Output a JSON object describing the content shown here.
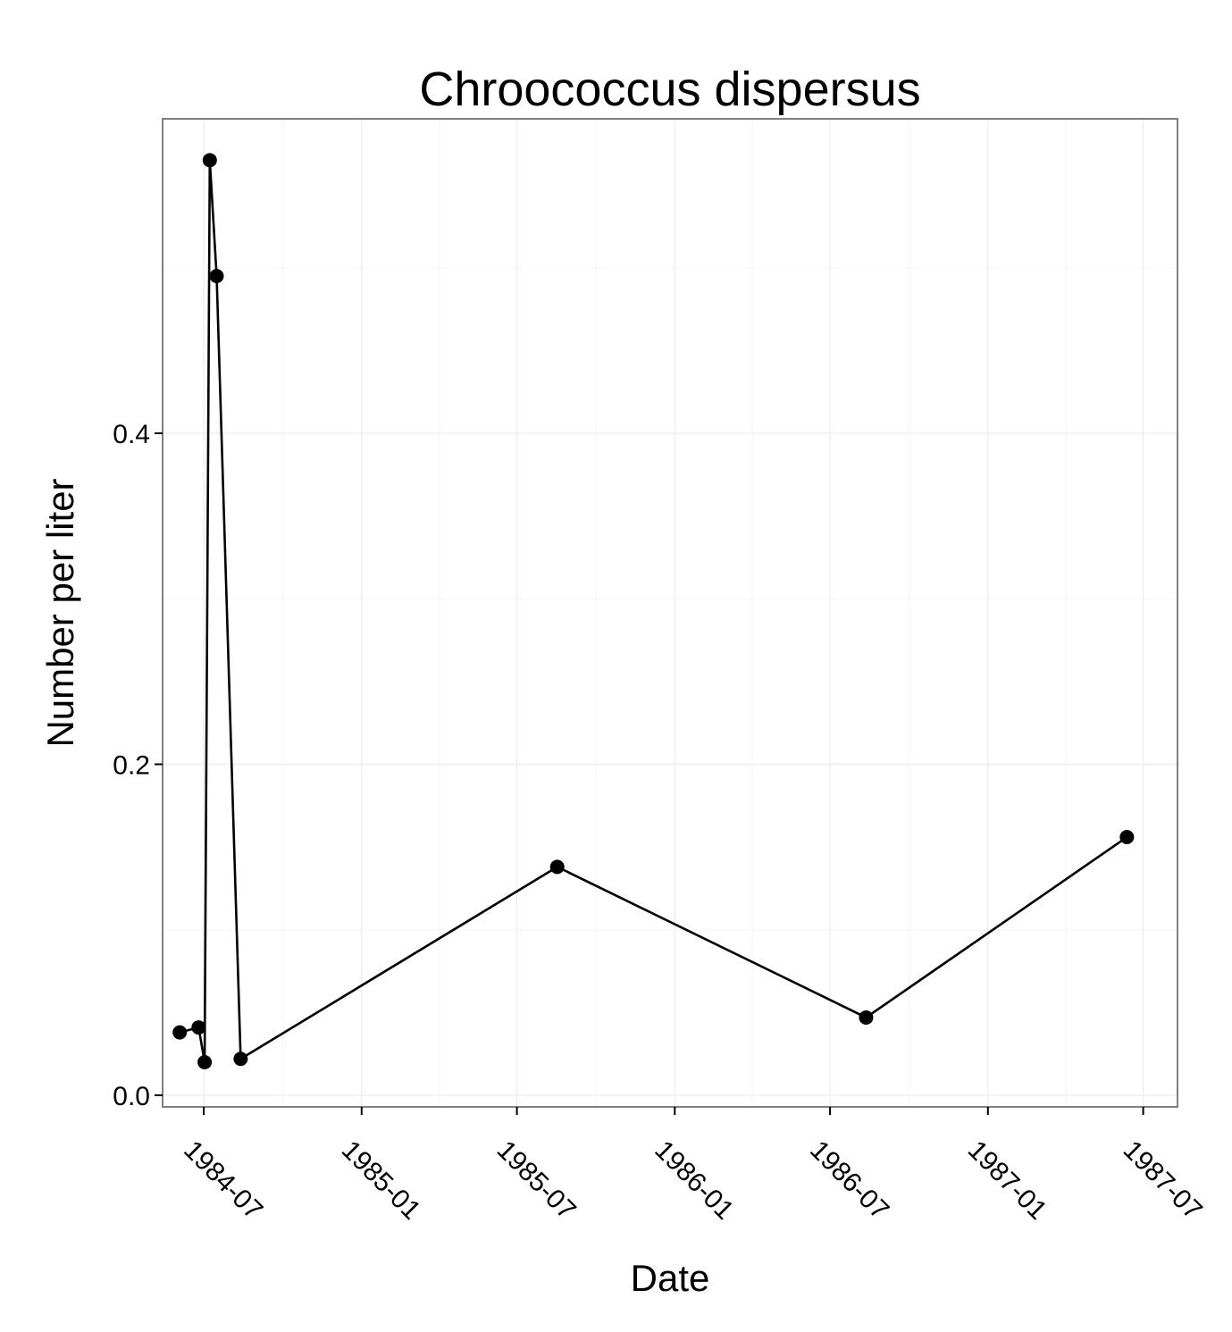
{
  "chart_data": {
    "type": "line",
    "title": "Chroococcus dispersus",
    "xlabel": "Date",
    "ylabel": "Number per liter",
    "x_tick_labels": [
      "1984-07",
      "1985-01",
      "1985-07",
      "1986-01",
      "1986-07",
      "1987-01",
      "1987-07"
    ],
    "y_tick_labels": [
      "0.0",
      "0.2",
      "0.4"
    ],
    "y_ticks": [
      0.0,
      0.2,
      0.4
    ],
    "ylim": [
      -0.007,
      0.59
    ],
    "xlim": [
      "1984-05-14",
      "1987-08-10"
    ],
    "grid": true,
    "legend": "none",
    "series": [
      {
        "x": [
          "1984-06-03",
          "1984-06-25",
          "1984-07-02",
          "1984-07-08",
          "1984-07-16",
          "1984-08-13",
          "1985-08-17",
          "1986-08-12",
          "1987-06-12"
        ],
        "y": [
          0.038,
          0.041,
          0.02,
          0.565,
          0.495,
          0.022,
          0.138,
          0.047,
          0.156
        ]
      }
    ]
  }
}
